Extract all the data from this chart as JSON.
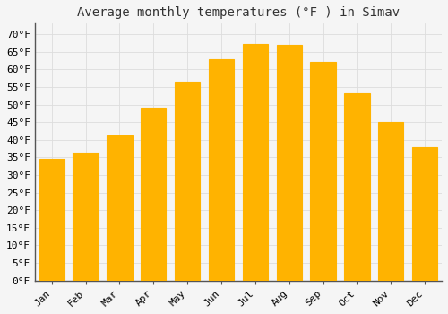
{
  "title": "Average monthly temperatures (°F ) in Simav",
  "months": [
    "Jan",
    "Feb",
    "Mar",
    "Apr",
    "May",
    "Jun",
    "Jul",
    "Aug",
    "Sep",
    "Oct",
    "Nov",
    "Dec"
  ],
  "values": [
    34.5,
    36.3,
    41.2,
    49.0,
    56.5,
    63.0,
    67.2,
    67.0,
    62.0,
    53.2,
    45.0,
    38.0
  ],
  "bar_color_top": "#FFB300",
  "bar_color_bottom": "#FFD966",
  "bar_edge_color": "#CC8800",
  "background_color": "#f5f5f5",
  "plot_bg_color": "#f5f5f5",
  "grid_color": "#dddddd",
  "yticks": [
    0,
    5,
    10,
    15,
    20,
    25,
    30,
    35,
    40,
    45,
    50,
    55,
    60,
    65,
    70
  ],
  "ylim": [
    0,
    73
  ],
  "title_fontsize": 10,
  "tick_fontsize": 8,
  "font_family": "monospace",
  "bar_width": 0.75
}
